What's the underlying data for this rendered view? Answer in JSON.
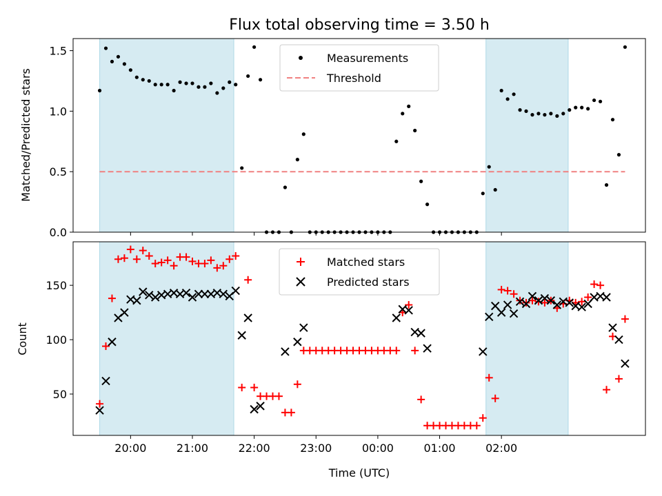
{
  "chart_data": [
    {
      "type": "scatter",
      "title": "Flux total observing time = 3.50 h",
      "ylabel": "Matched/Predicted stars",
      "ylim": [
        0,
        1.6
      ],
      "yticks": [
        0.0,
        0.5,
        1.0,
        1.5
      ],
      "ytick_labels": [
        "0.0",
        "0.5",
        "1.0",
        "1.5"
      ],
      "legend": {
        "placement": "top-center",
        "entries": [
          "Measurements",
          "Threshold"
        ]
      },
      "series": [
        {
          "name": "Measurements",
          "marker": "dot",
          "color": "#000000",
          "points": [
            [
              19.5,
              1.17
            ],
            [
              19.6,
              1.52
            ],
            [
              19.7,
              1.41
            ],
            [
              19.8,
              1.45
            ],
            [
              19.9,
              1.39
            ],
            [
              20.0,
              1.34
            ],
            [
              20.1,
              1.28
            ],
            [
              20.2,
              1.26
            ],
            [
              20.3,
              1.25
            ],
            [
              20.4,
              1.22
            ],
            [
              20.5,
              1.22
            ],
            [
              20.6,
              1.22
            ],
            [
              20.7,
              1.17
            ],
            [
              20.8,
              1.24
            ],
            [
              20.9,
              1.23
            ],
            [
              21.0,
              1.23
            ],
            [
              21.1,
              1.2
            ],
            [
              21.2,
              1.2
            ],
            [
              21.3,
              1.23
            ],
            [
              21.4,
              1.15
            ],
            [
              21.5,
              1.19
            ],
            [
              21.6,
              1.24
            ],
            [
              21.7,
              1.22
            ],
            [
              21.8,
              0.53
            ],
            [
              21.9,
              1.29
            ],
            [
              22.0,
              1.53
            ],
            [
              22.1,
              1.26
            ],
            [
              22.2,
              0
            ],
            [
              22.3,
              0
            ],
            [
              22.4,
              0
            ],
            [
              22.5,
              0.37
            ],
            [
              22.6,
              0
            ],
            [
              22.7,
              0.6
            ],
            [
              22.8,
              0.81
            ],
            [
              22.9,
              0
            ],
            [
              23.0,
              0
            ],
            [
              23.1,
              0
            ],
            [
              23.2,
              0
            ],
            [
              23.3,
              0
            ],
            [
              23.4,
              0
            ],
            [
              23.5,
              0
            ],
            [
              23.6,
              0
            ],
            [
              23.7,
              0
            ],
            [
              23.8,
              0
            ],
            [
              23.9,
              0
            ],
            [
              24.0,
              0
            ],
            [
              24.1,
              0
            ],
            [
              24.2,
              0
            ],
            [
              24.3,
              0.75
            ],
            [
              24.4,
              0.98
            ],
            [
              24.5,
              1.04
            ],
            [
              24.6,
              0.84
            ],
            [
              24.7,
              0.42
            ],
            [
              24.8,
              0.23
            ],
            [
              24.9,
              0
            ],
            [
              25.0,
              0
            ],
            [
              25.1,
              0
            ],
            [
              25.2,
              0
            ],
            [
              25.3,
              0
            ],
            [
              25.4,
              0
            ],
            [
              25.5,
              0
            ],
            [
              25.6,
              0
            ],
            [
              25.7,
              0.32
            ],
            [
              25.8,
              0.54
            ],
            [
              25.9,
              0.35
            ],
            [
              26.0,
              1.17
            ],
            [
              26.1,
              1.1
            ],
            [
              26.2,
              1.14
            ],
            [
              26.3,
              1.01
            ],
            [
              26.4,
              1.0
            ],
            [
              26.5,
              0.97
            ],
            [
              26.6,
              0.98
            ],
            [
              26.7,
              0.97
            ],
            [
              26.8,
              0.98
            ],
            [
              26.9,
              0.96
            ],
            [
              27.0,
              0.98
            ],
            [
              27.1,
              1.01
            ],
            [
              27.2,
              1.03
            ],
            [
              27.3,
              1.03
            ],
            [
              27.4,
              1.02
            ],
            [
              27.5,
              1.09
            ],
            [
              27.6,
              1.08
            ],
            [
              27.7,
              0.39
            ],
            [
              27.8,
              0.93
            ],
            [
              27.9,
              0.64
            ],
            [
              28.0,
              1.53
            ]
          ]
        },
        {
          "name": "Threshold",
          "marker": "dashed-line",
          "color": "#f08080",
          "points": [
            [
              19.5,
              0.5
            ],
            [
              28.0,
              0.5
            ]
          ]
        }
      ]
    },
    {
      "type": "scatter",
      "ylabel": "Count",
      "xlabel": "Time (UTC)",
      "ylim": [
        12,
        190
      ],
      "yticks": [
        50,
        100,
        150
      ],
      "ytick_labels": [
        "50",
        "100",
        "150"
      ],
      "xticks": [
        20,
        21,
        22,
        23,
        24,
        25,
        26
      ],
      "xtick_labels": [
        "20:00",
        "21:00",
        "22:00",
        "23:00",
        "00:00",
        "01:00",
        "02:00"
      ],
      "legend": {
        "placement": "top-center",
        "entries": [
          "Matched stars",
          "Predicted stars"
        ]
      },
      "series": [
        {
          "name": "Matched stars",
          "marker": "plus",
          "color": "#ff0000",
          "points": [
            [
              19.5,
              41
            ],
            [
              19.6,
              94
            ],
            [
              19.7,
              138
            ],
            [
              19.8,
              174
            ],
            [
              19.9,
              175
            ],
            [
              20.0,
              183
            ],
            [
              20.1,
              174
            ],
            [
              20.2,
              182
            ],
            [
              20.3,
              177
            ],
            [
              20.4,
              170
            ],
            [
              20.5,
              171
            ],
            [
              20.6,
              173
            ],
            [
              20.7,
              168
            ],
            [
              20.8,
              176
            ],
            [
              20.9,
              176
            ],
            [
              21.0,
              172
            ],
            [
              21.1,
              170
            ],
            [
              21.2,
              170
            ],
            [
              21.3,
              173
            ],
            [
              21.4,
              166
            ],
            [
              21.5,
              168
            ],
            [
              21.6,
              174
            ],
            [
              21.7,
              177
            ],
            [
              21.8,
              56
            ],
            [
              21.9,
              155
            ],
            [
              22.0,
              56
            ],
            [
              22.1,
              48
            ],
            [
              22.2,
              48
            ],
            [
              22.3,
              48
            ],
            [
              22.4,
              48
            ],
            [
              22.5,
              33
            ],
            [
              22.6,
              33
            ],
            [
              22.7,
              59
            ],
            [
              22.8,
              90
            ],
            [
              22.9,
              90
            ],
            [
              23.0,
              90
            ],
            [
              23.1,
              90
            ],
            [
              23.2,
              90
            ],
            [
              23.3,
              90
            ],
            [
              23.4,
              90
            ],
            [
              23.5,
              90
            ],
            [
              23.6,
              90
            ],
            [
              23.7,
              90
            ],
            [
              23.8,
              90
            ],
            [
              23.9,
              90
            ],
            [
              24.0,
              90
            ],
            [
              24.1,
              90
            ],
            [
              24.2,
              90
            ],
            [
              24.3,
              90
            ],
            [
              24.4,
              125
            ],
            [
              24.5,
              132
            ],
            [
              24.6,
              90
            ],
            [
              24.7,
              45
            ],
            [
              24.8,
              21
            ],
            [
              24.9,
              21
            ],
            [
              25.0,
              21
            ],
            [
              25.1,
              21
            ],
            [
              25.2,
              21
            ],
            [
              25.3,
              21
            ],
            [
              25.4,
              21
            ],
            [
              25.5,
              21
            ],
            [
              25.6,
              21
            ],
            [
              25.7,
              28
            ],
            [
              25.8,
              65
            ],
            [
              25.9,
              46
            ],
            [
              26.0,
              146
            ],
            [
              26.1,
              145
            ],
            [
              26.2,
              142
            ],
            [
              26.3,
              136
            ],
            [
              26.4,
              134
            ],
            [
              26.5,
              136
            ],
            [
              26.6,
              135
            ],
            [
              26.7,
              134
            ],
            [
              26.8,
              136
            ],
            [
              26.9,
              129
            ],
            [
              27.0,
              133
            ],
            [
              27.1,
              136
            ],
            [
              27.2,
              134
            ],
            [
              27.3,
              135
            ],
            [
              27.4,
              139
            ],
            [
              27.5,
              151
            ],
            [
              27.6,
              150
            ],
            [
              27.7,
              54
            ],
            [
              27.8,
              103
            ],
            [
              27.9,
              64
            ],
            [
              28.0,
              119
            ]
          ]
        },
        {
          "name": "Predicted stars",
          "marker": "x",
          "color": "#000000",
          "points": [
            [
              19.5,
              35
            ],
            [
              19.6,
              62
            ],
            [
              19.7,
              98
            ],
            [
              19.8,
              120
            ],
            [
              19.9,
              125
            ],
            [
              20.0,
              137
            ],
            [
              20.1,
              136
            ],
            [
              20.2,
              144
            ],
            [
              20.3,
              141
            ],
            [
              20.4,
              139
            ],
            [
              20.5,
              141
            ],
            [
              20.6,
              142
            ],
            [
              20.7,
              143
            ],
            [
              20.8,
              142
            ],
            [
              20.9,
              143
            ],
            [
              21.0,
              139
            ],
            [
              21.1,
              142
            ],
            [
              21.2,
              142
            ],
            [
              21.3,
              142
            ],
            [
              21.4,
              143
            ],
            [
              21.5,
              142
            ],
            [
              21.6,
              140
            ],
            [
              21.7,
              145
            ],
            [
              21.8,
              104
            ],
            [
              21.9,
              120
            ],
            [
              22.0,
              36
            ],
            [
              22.1,
              39
            ],
            [
              22.5,
              89
            ],
            [
              22.7,
              98
            ],
            [
              22.8,
              111
            ],
            [
              24.3,
              120
            ],
            [
              24.4,
              128
            ],
            [
              24.5,
              127
            ],
            [
              24.6,
              107
            ],
            [
              24.7,
              106
            ],
            [
              24.8,
              92
            ],
            [
              25.7,
              89
            ],
            [
              25.8,
              121
            ],
            [
              25.9,
              131
            ],
            [
              26.0,
              125
            ],
            [
              26.1,
              132
            ],
            [
              26.2,
              124
            ],
            [
              26.3,
              135
            ],
            [
              26.4,
              133
            ],
            [
              26.5,
              140
            ],
            [
              26.6,
              136
            ],
            [
              26.7,
              138
            ],
            [
              26.8,
              136
            ],
            [
              26.9,
              132
            ],
            [
              27.0,
              135
            ],
            [
              27.1,
              134
            ],
            [
              27.2,
              131
            ],
            [
              27.3,
              130
            ],
            [
              27.4,
              133
            ],
            [
              27.5,
              139
            ],
            [
              27.6,
              140
            ],
            [
              27.7,
              139
            ],
            [
              27.8,
              111
            ],
            [
              27.9,
              100
            ],
            [
              28.0,
              78
            ]
          ]
        }
      ]
    }
  ],
  "shaded_intervals": [
    [
      19.5,
      21.67
    ],
    [
      25.75,
      27.08
    ]
  ],
  "shade_color": "#add8e6",
  "x_range": [
    19.07,
    28.33
  ]
}
